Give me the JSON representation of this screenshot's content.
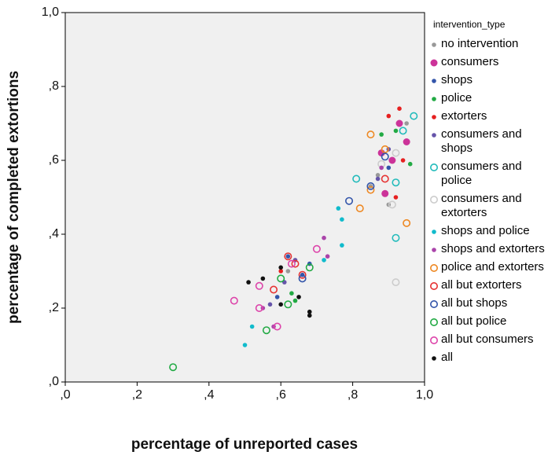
{
  "chart_data": {
    "type": "scatter",
    "xlabel": "percentage of unreported cases",
    "ylabel": "percentage of completed extortions",
    "legend_title": "intervention_type",
    "legend": "right",
    "xlim": [
      0,
      1
    ],
    "ylim": [
      0,
      1
    ],
    "xticks": [
      {
        "value": 0,
        "label": ",0"
      },
      {
        "value": 0.2,
        "label": ",2"
      },
      {
        "value": 0.4,
        "label": ",4"
      },
      {
        "value": 0.6,
        "label": ",6"
      },
      {
        "value": 0.8,
        "label": ",8"
      },
      {
        "value": 1,
        "label": "1,0"
      }
    ],
    "yticks": [
      {
        "value": 0,
        "label": ",0"
      },
      {
        "value": 0.2,
        "label": ",2"
      },
      {
        "value": 0.4,
        "label": ",4"
      },
      {
        "value": 0.6,
        "label": ",6"
      },
      {
        "value": 0.8,
        "label": ",8"
      },
      {
        "value": 1,
        "label": "1,0"
      }
    ],
    "series": [
      {
        "name": "no intervention",
        "color": "#999999",
        "marker": "filled",
        "x": [
          0.87,
          0.9,
          0.95,
          0.62,
          0.85
        ],
        "values": [
          0.56,
          0.48,
          0.7,
          0.3,
          0.53
        ]
      },
      {
        "name": "consumers",
        "color": "#cc3399",
        "marker": "large",
        "x": [
          0.93,
          0.89,
          0.95,
          0.91,
          0.88
        ],
        "values": [
          0.7,
          0.51,
          0.65,
          0.6,
          0.62
        ]
      },
      {
        "name": "shops",
        "color": "#3355aa",
        "marker": "filled",
        "x": [
          0.62,
          0.66,
          0.9,
          0.68,
          0.59
        ],
        "values": [
          0.34,
          0.29,
          0.58,
          0.32,
          0.23
        ]
      },
      {
        "name": "police",
        "color": "#22aa44",
        "marker": "filled",
        "x": [
          0.92,
          0.96,
          0.64,
          0.88,
          0.63
        ],
        "values": [
          0.68,
          0.59,
          0.22,
          0.67,
          0.24
        ]
      },
      {
        "name": "extorters",
        "color": "#e62020",
        "marker": "filled",
        "x": [
          0.93,
          0.92,
          0.94,
          0.6,
          0.9
        ],
        "values": [
          0.74,
          0.5,
          0.6,
          0.3,
          0.72
        ]
      },
      {
        "name": "consumers and shops",
        "color": "#6655aa",
        "marker": "filled",
        "x": [
          0.9,
          0.61,
          0.87,
          0.57,
          0.64
        ],
        "values": [
          0.63,
          0.27,
          0.55,
          0.21,
          0.33
        ]
      },
      {
        "name": "consumers and police",
        "color": "#22bbbb",
        "marker": "hollow",
        "x": [
          0.97,
          0.92,
          0.81,
          0.92,
          0.94
        ],
        "values": [
          0.72,
          0.39,
          0.55,
          0.54,
          0.68
        ]
      },
      {
        "name": "consumers and extorters",
        "color": "#cccccc",
        "marker": "hollow",
        "x": [
          0.92,
          0.91,
          0.92,
          0.88
        ],
        "values": [
          0.27,
          0.48,
          0.62,
          0.59
        ]
      },
      {
        "name": "shops and police",
        "color": "#11bbcc",
        "marker": "filled",
        "x": [
          0.5,
          0.76,
          0.77,
          0.72,
          0.52,
          0.77
        ],
        "values": [
          0.1,
          0.47,
          0.44,
          0.33,
          0.15,
          0.37
        ]
      },
      {
        "name": "shops and extorters",
        "color": "#aa44aa",
        "marker": "filled",
        "x": [
          0.58,
          0.72,
          0.55,
          0.73,
          0.88
        ],
        "values": [
          0.15,
          0.39,
          0.2,
          0.34,
          0.58
        ]
      },
      {
        "name": "police and extorters",
        "color": "#ee8822",
        "marker": "hollow",
        "x": [
          0.95,
          0.85,
          0.82,
          0.89,
          0.85
        ],
        "values": [
          0.43,
          0.67,
          0.47,
          0.63,
          0.52
        ]
      },
      {
        "name": "all but extorters",
        "color": "#e63333",
        "marker": "hollow",
        "x": [
          0.62,
          0.58,
          0.64,
          0.66,
          0.89
        ],
        "values": [
          0.34,
          0.25,
          0.32,
          0.29,
          0.55
        ]
      },
      {
        "name": "all but shops",
        "color": "#3355aa",
        "marker": "hollow",
        "x": [
          0.79,
          0.89,
          0.66,
          0.85
        ],
        "values": [
          0.49,
          0.61,
          0.28,
          0.53
        ]
      },
      {
        "name": "all but police",
        "color": "#22aa44",
        "marker": "hollow",
        "x": [
          0.3,
          0.56,
          0.62,
          0.68,
          0.6
        ],
        "values": [
          0.04,
          0.14,
          0.21,
          0.31,
          0.28
        ]
      },
      {
        "name": "all but consumers",
        "color": "#dd44aa",
        "marker": "hollow",
        "x": [
          0.47,
          0.54,
          0.54,
          0.7,
          0.59,
          0.63
        ],
        "values": [
          0.22,
          0.26,
          0.2,
          0.36,
          0.15,
          0.32
        ]
      },
      {
        "name": "all",
        "color": "#111111",
        "marker": "filled",
        "x": [
          0.51,
          0.6,
          0.65,
          0.68,
          0.68,
          0.55,
          0.6
        ],
        "values": [
          0.27,
          0.21,
          0.23,
          0.19,
          0.18,
          0.28,
          0.31
        ]
      }
    ]
  }
}
